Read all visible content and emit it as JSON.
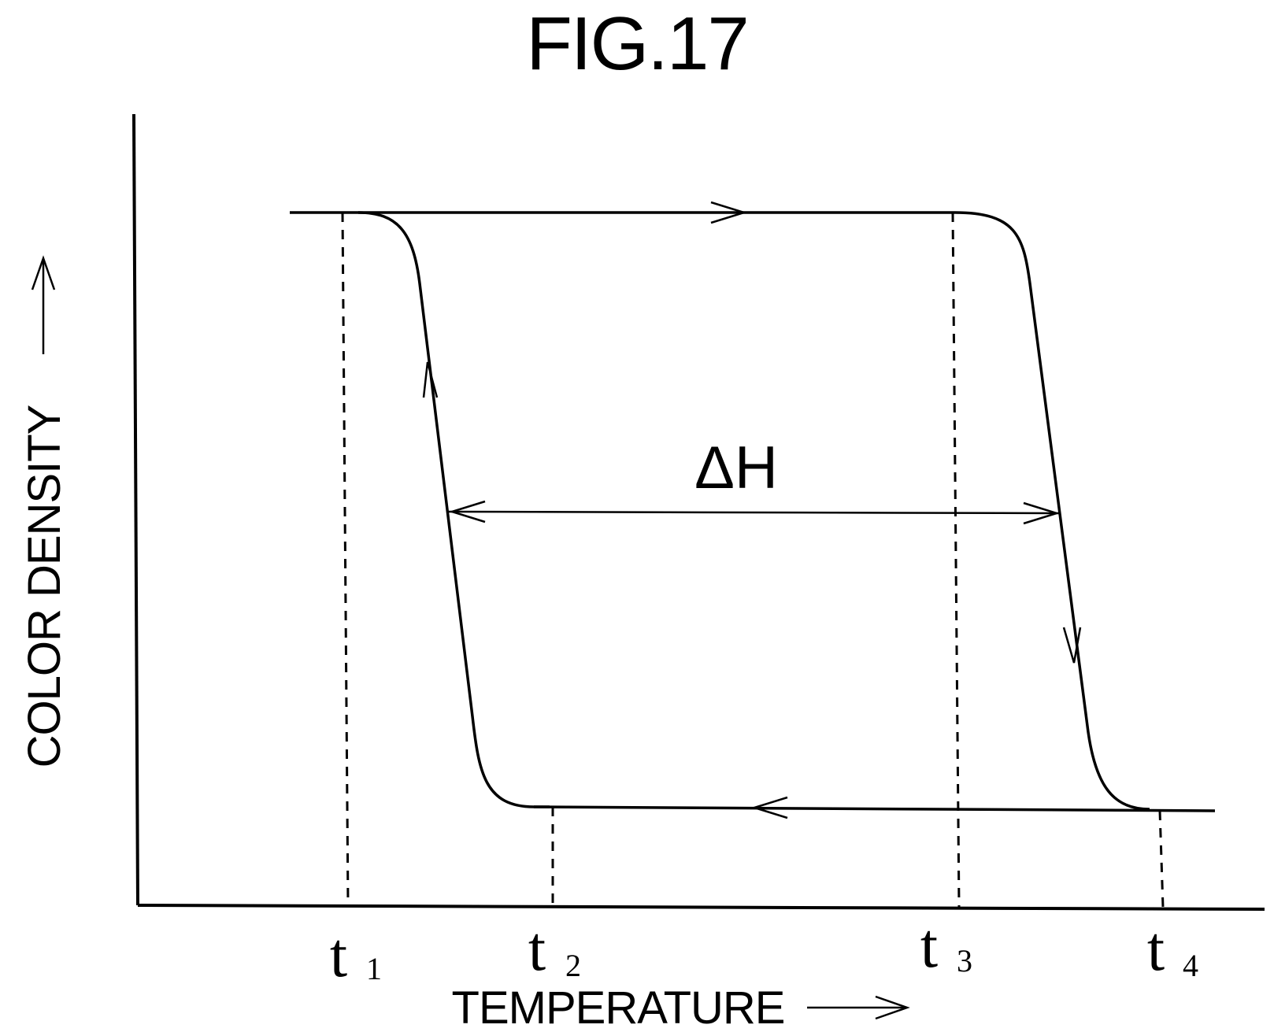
{
  "figure": {
    "title": "FIG.17"
  },
  "axes": {
    "x_label": "TEMPERATURE",
    "y_label": "COLOR DENSITY"
  },
  "ticks": [
    {
      "main": "t",
      "sub": "1"
    },
    {
      "main": "t",
      "sub": "2"
    },
    {
      "main": "t",
      "sub": "3"
    },
    {
      "main": "t",
      "sub": "4"
    }
  ],
  "annotation": {
    "hysteresis_label": "ΔH"
  }
}
